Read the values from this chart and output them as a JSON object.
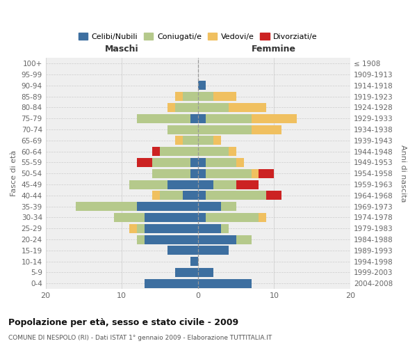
{
  "age_groups": [
    "100+",
    "95-99",
    "90-94",
    "85-89",
    "80-84",
    "75-79",
    "70-74",
    "65-69",
    "60-64",
    "55-59",
    "50-54",
    "45-49",
    "40-44",
    "35-39",
    "30-34",
    "25-29",
    "20-24",
    "15-19",
    "10-14",
    "5-9",
    "0-4"
  ],
  "birth_years": [
    "≤ 1908",
    "1909-1913",
    "1914-1918",
    "1919-1923",
    "1924-1928",
    "1929-1933",
    "1934-1938",
    "1939-1943",
    "1944-1948",
    "1949-1953",
    "1954-1958",
    "1959-1963",
    "1964-1968",
    "1969-1973",
    "1974-1978",
    "1979-1983",
    "1984-1988",
    "1989-1993",
    "1994-1998",
    "1999-2003",
    "2004-2008"
  ],
  "maschi": {
    "celibe": [
      0,
      0,
      0,
      0,
      0,
      1,
      0,
      0,
      0,
      1,
      1,
      4,
      2,
      8,
      7,
      7,
      7,
      4,
      1,
      3,
      7
    ],
    "coniugato": [
      0,
      0,
      0,
      2,
      3,
      7,
      4,
      2,
      5,
      5,
      5,
      5,
      3,
      8,
      4,
      1,
      1,
      0,
      0,
      0,
      0
    ],
    "vedovo": [
      0,
      0,
      0,
      1,
      1,
      0,
      0,
      1,
      0,
      0,
      0,
      0,
      1,
      0,
      0,
      1,
      0,
      0,
      0,
      0,
      0
    ],
    "divorziato": [
      0,
      0,
      0,
      0,
      0,
      0,
      0,
      0,
      1,
      2,
      0,
      0,
      0,
      0,
      0,
      0,
      0,
      0,
      0,
      0,
      0
    ]
  },
  "femmine": {
    "nubile": [
      0,
      0,
      1,
      0,
      0,
      1,
      0,
      0,
      0,
      1,
      1,
      2,
      1,
      3,
      1,
      3,
      5,
      4,
      0,
      2,
      7
    ],
    "coniugata": [
      0,
      0,
      0,
      2,
      4,
      6,
      7,
      2,
      4,
      4,
      6,
      3,
      8,
      2,
      7,
      1,
      2,
      0,
      0,
      0,
      0
    ],
    "vedova": [
      0,
      0,
      0,
      3,
      5,
      6,
      4,
      1,
      1,
      1,
      1,
      0,
      0,
      0,
      1,
      0,
      0,
      0,
      0,
      0,
      0
    ],
    "divorziata": [
      0,
      0,
      0,
      0,
      0,
      0,
      0,
      0,
      0,
      0,
      2,
      3,
      2,
      0,
      0,
      0,
      0,
      0,
      0,
      0,
      0
    ]
  },
  "colors": {
    "celibe": "#3d6fa0",
    "coniugato": "#b5c98b",
    "vedovo": "#f0c060",
    "divorziato": "#cc2222"
  },
  "xlim": 20,
  "title": "Popolazione per età, sesso e stato civile - 2009",
  "subtitle": "COMUNE DI NESPOLO (RI) - Dati ISTAT 1° gennaio 2009 - Elaborazione TUTTITALIA.IT",
  "ylabel_left": "Fasce di età",
  "ylabel_right": "Anni di nascita",
  "xlabel_maschi": "Maschi",
  "xlabel_femmine": "Femmine",
  "bg_color": "#ffffff",
  "plot_bg": "#efefef",
  "maschi_color": "#333333",
  "femmine_color": "#333333"
}
